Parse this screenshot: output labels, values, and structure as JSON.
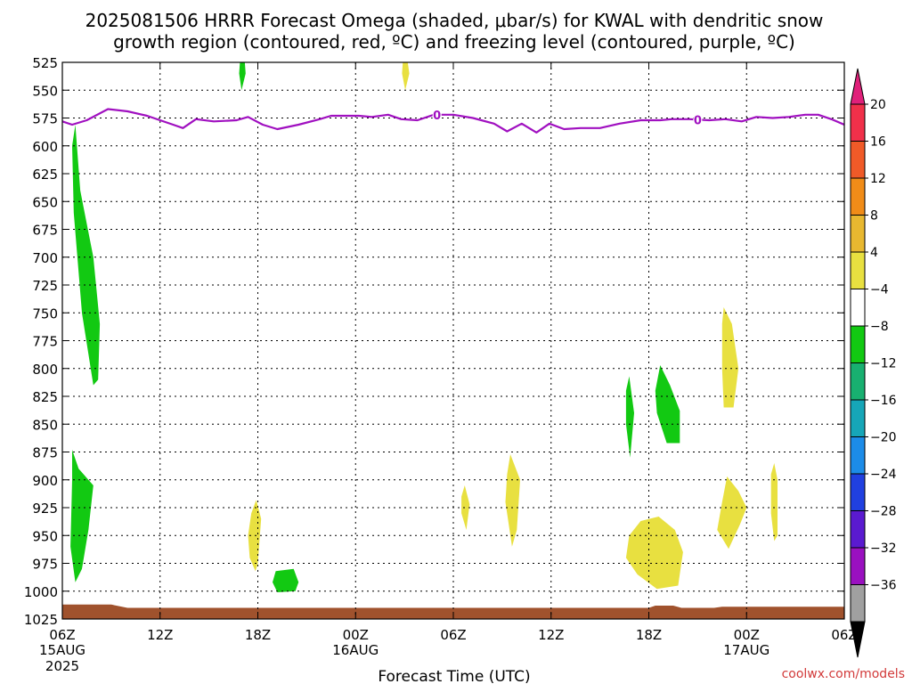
{
  "chart_data": {
    "type": "heatmap",
    "title_line1": "2025081506 HRRR Forecast Omega (shaded, μbar/s) for KWAL with dendritic snow",
    "title_line2": "growth region (contoured, red, ºC) and freezing level (contoured, purple, ºC)",
    "xlabel": "Forecast Time (UTC)",
    "credit": "coolwx.com/models",
    "y_axis": {
      "inverted": true,
      "range": [
        525,
        1025
      ],
      "ticks": [
        "525",
        "550",
        "575",
        "600",
        "625",
        "650",
        "675",
        "700",
        "725",
        "750",
        "775",
        "800",
        "825",
        "850",
        "875",
        "900",
        "925",
        "950",
        "975",
        "1000",
        "1025"
      ]
    },
    "x_axis": {
      "range_hours": [
        0,
        48
      ],
      "ticks": [
        {
          "h": 0,
          "label": "06Z",
          "date": "15AUG",
          "year": "2025"
        },
        {
          "h": 6,
          "label": "12Z",
          "date": "",
          "year": ""
        },
        {
          "h": 12,
          "label": "18Z",
          "date": "",
          "year": ""
        },
        {
          "h": 18,
          "label": "00Z",
          "date": "16AUG",
          "year": ""
        },
        {
          "h": 24,
          "label": "06Z",
          "date": "",
          "year": ""
        },
        {
          "h": 30,
          "label": "12Z",
          "date": "",
          "year": ""
        },
        {
          "h": 36,
          "label": "18Z",
          "date": "",
          "year": ""
        },
        {
          "h": 42,
          "label": "00Z",
          "date": "17AUG",
          "year": ""
        },
        {
          "h": 48,
          "label": "06Z",
          "date": "",
          "year": ""
        }
      ]
    },
    "grid": true,
    "colorbar": {
      "labels": [
        "20",
        "16",
        "12",
        "8",
        "4",
        "−4",
        "−8",
        "−12",
        "−16",
        "−20",
        "−24",
        "−28",
        "−32",
        "−36"
      ],
      "top_color": "#e0207a",
      "bottom_color": "#000000",
      "colors": [
        "#f0304a",
        "#f05a28",
        "#f08c18",
        "#e8b830",
        "#e8e040",
        "#ffffff",
        "#12c912",
        "#18b070",
        "#16a6b8",
        "#1c8ce8",
        "#2040e0",
        "#5a1ad0",
        "#9a10c0",
        "#a0a0a0"
      ]
    },
    "freezing_level": {
      "name": "0",
      "color": "#a010c0",
      "label_hours": [
        23,
        39
      ],
      "points": [
        [
          0,
          578
        ],
        [
          0.6,
          581
        ],
        [
          1.5,
          577
        ],
        [
          2.8,
          567
        ],
        [
          4,
          569
        ],
        [
          5.2,
          573
        ],
        [
          6.8,
          581
        ],
        [
          7.4,
          584
        ],
        [
          8.2,
          576
        ],
        [
          9.3,
          578
        ],
        [
          10.7,
          577
        ],
        [
          11.4,
          574
        ],
        [
          12.3,
          581
        ],
        [
          13.2,
          585
        ],
        [
          14.5,
          581
        ],
        [
          15.8,
          576
        ],
        [
          16.5,
          573
        ],
        [
          17.4,
          573
        ],
        [
          18.2,
          573
        ],
        [
          19,
          574
        ],
        [
          20,
          572
        ],
        [
          20.8,
          576
        ],
        [
          21.8,
          577
        ],
        [
          22.8,
          572
        ],
        [
          24,
          572
        ],
        [
          25.2,
          575
        ],
        [
          26.5,
          580
        ],
        [
          27.3,
          587
        ],
        [
          28.2,
          580
        ],
        [
          29.1,
          588
        ],
        [
          29.9,
          580
        ],
        [
          30.8,
          585
        ],
        [
          31.8,
          584
        ],
        [
          33,
          584
        ],
        [
          34.2,
          580
        ],
        [
          35.5,
          577
        ],
        [
          36.7,
          577
        ],
        [
          37.4,
          576
        ],
        [
          38.5,
          576
        ],
        [
          39.7,
          577
        ],
        [
          40.7,
          576
        ],
        [
          41.7,
          578
        ],
        [
          42.6,
          574
        ],
        [
          43.6,
          575
        ],
        [
          44.6,
          574
        ],
        [
          45.6,
          572
        ],
        [
          46.4,
          572
        ],
        [
          47.2,
          576
        ],
        [
          48,
          581
        ]
      ]
    },
    "omega_regions": [
      {
        "name": "green",
        "color": "#12c912",
        "points": [
          [
            0.8,
            581
          ],
          [
            1.1,
            640
          ],
          [
            1.9,
            700
          ],
          [
            2.3,
            760
          ],
          [
            2.2,
            810
          ],
          [
            1.9,
            815
          ],
          [
            1.2,
            750
          ],
          [
            0.7,
            660
          ],
          [
            0.6,
            600
          ]
        ]
      },
      {
        "name": "green",
        "color": "#12c912",
        "points": [
          [
            0.6,
            873
          ],
          [
            1,
            890
          ],
          [
            1.9,
            905
          ],
          [
            1.6,
            945
          ],
          [
            1.2,
            980
          ],
          [
            0.8,
            992
          ],
          [
            0.5,
            960
          ],
          [
            0.6,
            900
          ]
        ]
      },
      {
        "name": "green",
        "color": "#12c912",
        "points": [
          [
            10.9,
            525
          ],
          [
            11.2,
            525
          ],
          [
            11.25,
            535
          ],
          [
            11.0,
            550
          ],
          [
            10.85,
            535
          ]
        ]
      },
      {
        "name": "green",
        "color": "#12c912",
        "points": [
          [
            13.1,
            982
          ],
          [
            14.2,
            980
          ],
          [
            14.5,
            992
          ],
          [
            14.3,
            1000
          ],
          [
            13.2,
            1001
          ],
          [
            12.9,
            992
          ]
        ]
      },
      {
        "name": "green",
        "color": "#12c912",
        "points": [
          [
            34.8,
            807
          ],
          [
            35.1,
            840
          ],
          [
            34.85,
            880
          ],
          [
            34.6,
            850
          ],
          [
            34.6,
            820
          ]
        ]
      },
      {
        "name": "green",
        "color": "#12c912",
        "points": [
          [
            36.7,
            797
          ],
          [
            37.3,
            815
          ],
          [
            37.9,
            838
          ],
          [
            37.9,
            867
          ],
          [
            37.1,
            867
          ],
          [
            36.5,
            840
          ],
          [
            36.4,
            820
          ]
        ]
      },
      {
        "name": "yellow",
        "color": "#e8e040",
        "points": [
          [
            20.9,
            525
          ],
          [
            21.2,
            525
          ],
          [
            21.3,
            535
          ],
          [
            21.05,
            550
          ],
          [
            20.85,
            535
          ]
        ]
      },
      {
        "name": "yellow",
        "color": "#e8e040",
        "points": [
          [
            11.9,
            918
          ],
          [
            12.2,
            935
          ],
          [
            12.0,
            975
          ],
          [
            11.85,
            982
          ],
          [
            11.5,
            970
          ],
          [
            11.4,
            950
          ],
          [
            11.6,
            930
          ]
        ]
      },
      {
        "name": "yellow",
        "color": "#e8e040",
        "points": [
          [
            24.7,
            905
          ],
          [
            25.0,
            922
          ],
          [
            24.8,
            945
          ],
          [
            24.5,
            930
          ],
          [
            24.5,
            915
          ]
        ]
      },
      {
        "name": "yellow",
        "color": "#e8e040",
        "points": [
          [
            27.5,
            877
          ],
          [
            28.1,
            900
          ],
          [
            27.9,
            945
          ],
          [
            27.6,
            960
          ],
          [
            27.2,
            920
          ],
          [
            27.3,
            895
          ]
        ]
      },
      {
        "name": "yellow",
        "color": "#e8e040",
        "points": [
          [
            35.5,
            937
          ],
          [
            36.6,
            933
          ],
          [
            37.6,
            945
          ],
          [
            38.1,
            965
          ],
          [
            37.8,
            995
          ],
          [
            36.5,
            998
          ],
          [
            35.3,
            985
          ],
          [
            34.6,
            970
          ],
          [
            34.8,
            950
          ]
        ]
      },
      {
        "name": "yellow",
        "color": "#e8e040",
        "points": [
          [
            40.6,
            745
          ],
          [
            41.1,
            760
          ],
          [
            41.5,
            800
          ],
          [
            41.2,
            835
          ],
          [
            40.6,
            835
          ],
          [
            40.5,
            800
          ],
          [
            40.5,
            760
          ]
        ]
      },
      {
        "name": "yellow",
        "color": "#e8e040",
        "points": [
          [
            40.8,
            897
          ],
          [
            41.5,
            910
          ],
          [
            42.0,
            925
          ],
          [
            41.6,
            940
          ],
          [
            40.9,
            962
          ],
          [
            40.2,
            945
          ],
          [
            40.5,
            920
          ]
        ]
      },
      {
        "name": "yellow",
        "color": "#e8e040",
        "points": [
          [
            43.7,
            885
          ],
          [
            43.9,
            900
          ],
          [
            43.9,
            950
          ],
          [
            43.7,
            955
          ],
          [
            43.5,
            930
          ],
          [
            43.5,
            895
          ]
        ]
      }
    ],
    "terrain": {
      "color": "#a0522d",
      "points": [
        [
          0,
          1012
        ],
        [
          3,
          1012
        ],
        [
          4,
          1015
        ],
        [
          12,
          1015
        ],
        [
          16,
          1015
        ],
        [
          18,
          1015
        ],
        [
          24,
          1015
        ],
        [
          30,
          1015
        ],
        [
          36,
          1015
        ],
        [
          36.4,
          1013
        ],
        [
          37.5,
          1013
        ],
        [
          38,
          1015
        ],
        [
          40,
          1015
        ],
        [
          40.5,
          1014
        ],
        [
          48,
          1014
        ]
      ]
    }
  }
}
